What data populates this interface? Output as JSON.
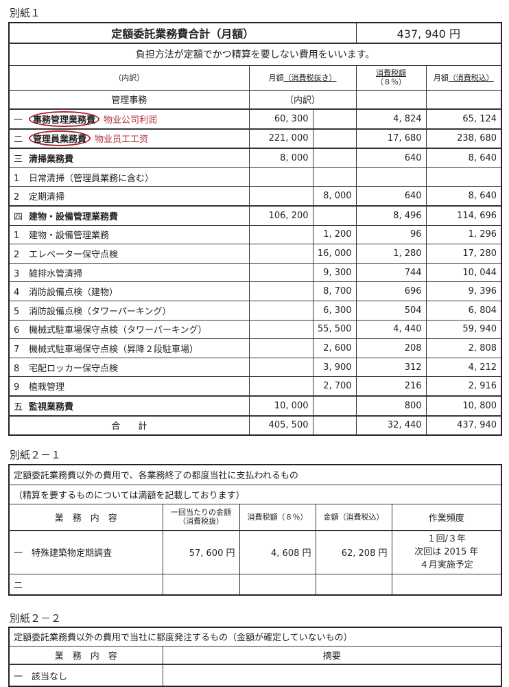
{
  "sheet1": {
    "label": "別紙１",
    "title": "定額委託業務費合計（月額）",
    "total": "437, 940 円",
    "note": "負担方法が定額でかつ精算を要しない費用をいいます。",
    "headers": {
      "breakdown": "（内訳）",
      "monthly": "月額",
      "monthly_u": "（消費税抜き）",
      "tax": "消費税額",
      "tax_rate": "（８％）",
      "incl": "月額",
      "incl_u": "（消費税込）",
      "admin": "管理事務",
      "admin_sub": "（内訳）"
    },
    "rows": [
      {
        "no": "一",
        "name": "事務管理業務費",
        "annot": "物业公司利润",
        "main": "60, 300",
        "sub": "",
        "tax": "4, 824",
        "incl": "65, 124",
        "bold": true,
        "circled": true
      },
      {
        "no": "二",
        "name": "管理員業務費",
        "annot": "物业员工工资",
        "main": "221, 000",
        "sub": "",
        "tax": "17, 680",
        "incl": "238, 680",
        "bold": true,
        "circled": true
      },
      {
        "no": "三",
        "name": "清掃業務費",
        "main": "8, 000",
        "sub": "",
        "tax": "640",
        "incl": "8, 640",
        "bold": true
      },
      {
        "no": "1",
        "name": "日常清掃（管理員業務に含む）",
        "main": "",
        "sub": "",
        "tax": "",
        "incl": ""
      },
      {
        "no": "2",
        "name": "定期清掃",
        "main": "",
        "sub": "8, 000",
        "tax": "640",
        "incl": "8, 640"
      },
      {
        "no": "四",
        "name": "建物・設備管理業務費",
        "main": "106, 200",
        "sub": "",
        "tax": "8, 496",
        "incl": "114, 696",
        "bold": true
      },
      {
        "no": "1",
        "name": "建物・設備管理業務",
        "main": "",
        "sub": "1, 200",
        "tax": "96",
        "incl": "1, 296"
      },
      {
        "no": "2",
        "name": "エレベーター保守点検",
        "main": "",
        "sub": "16, 000",
        "tax": "1, 280",
        "incl": "17, 280"
      },
      {
        "no": "3",
        "name": "雑排水管清掃",
        "main": "",
        "sub": "9, 300",
        "tax": "744",
        "incl": "10, 044"
      },
      {
        "no": "4",
        "name": "消防設備点検（建物）",
        "main": "",
        "sub": "8, 700",
        "tax": "696",
        "incl": "9, 396"
      },
      {
        "no": "5",
        "name": "消防設備点検（タワーパーキング）",
        "main": "",
        "sub": "6, 300",
        "tax": "504",
        "incl": "6, 804"
      },
      {
        "no": "6",
        "name": "機械式駐車場保守点検（タワーパーキング）",
        "main": "",
        "sub": "55, 500",
        "tax": "4, 440",
        "incl": "59, 940"
      },
      {
        "no": "7",
        "name": "機械式駐車場保守点検（昇降２段駐車場）",
        "main": "",
        "sub": "2, 600",
        "tax": "208",
        "incl": "2, 808"
      },
      {
        "no": "8",
        "name": "宅配ロッカー保守点検",
        "main": "",
        "sub": "3, 900",
        "tax": "312",
        "incl": "4, 212"
      },
      {
        "no": "9",
        "name": "植栽管理",
        "main": "",
        "sub": "2, 700",
        "tax": "216",
        "incl": "2, 916"
      },
      {
        "no": "五",
        "name": "監視業務費",
        "main": "10, 000",
        "sub": "",
        "tax": "800",
        "incl": "10, 800",
        "bold": true
      }
    ],
    "sum": {
      "label": "合　　計",
      "main": "405, 500",
      "tax": "32, 440",
      "incl": "437, 940"
    }
  },
  "sheet21": {
    "label": "別紙２－１",
    "title": "定額委託業務費以外の費用で、各業務終了の都度当社に支払われるもの",
    "note": "（精算を要するものについては満額を記載しております）",
    "headers": [
      "業　務　内　容",
      "一回当たりの金額（消費税抜）",
      "消費税額（８％）",
      "金額（消費税込）",
      "作業頻度"
    ],
    "row1": {
      "no": "一",
      "name": "特殊建築物定期調査",
      "amount": "57, 600 円",
      "tax": "4, 608 円",
      "incl": "62, 208 円",
      "freq1": "１回/３年",
      "freq2": "次回は 2015 年",
      "freq3": "４月実施予定"
    },
    "row2": {
      "no": "二"
    }
  },
  "sheet22": {
    "label": "別紙２－２",
    "title": "定額委託業務費以外の費用で当社に都度発注するもの（金額が確定していないもの）",
    "headers": [
      "業　務　内　容",
      "摘要"
    ],
    "row1": {
      "no": "一",
      "name": "該当なし"
    }
  }
}
